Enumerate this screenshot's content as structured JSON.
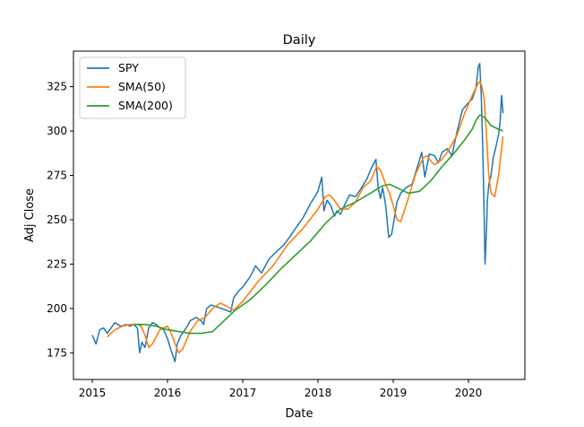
{
  "chart_data": {
    "type": "line",
    "title": "Daily",
    "xlabel": "Date",
    "ylabel": "Adj Close",
    "xlim": [
      2014.75,
      2020.75
    ],
    "ylim": [
      160,
      345
    ],
    "x_ticks": [
      2015,
      2016,
      2017,
      2018,
      2019,
      2020
    ],
    "x_tick_labels": [
      "2015",
      "2016",
      "2017",
      "2018",
      "2019",
      "2020"
    ],
    "y_ticks": [
      175,
      200,
      225,
      250,
      275,
      300,
      325
    ],
    "y_tick_labels": [
      "175",
      "200",
      "225",
      "250",
      "275",
      "300",
      "325"
    ],
    "grid": false,
    "legend_position": "top-left",
    "series": [
      {
        "name": "SPY",
        "color": "#1f77b4",
        "x": [
          2015.0,
          2015.05,
          2015.1,
          2015.15,
          2015.2,
          2015.25,
          2015.3,
          2015.38,
          2015.45,
          2015.5,
          2015.55,
          2015.6,
          2015.63,
          2015.66,
          2015.7,
          2015.75,
          2015.8,
          2015.85,
          2015.9,
          2015.95,
          2016.0,
          2016.05,
          2016.1,
          2016.13,
          2016.18,
          2016.25,
          2016.3,
          2016.38,
          2016.45,
          2016.48,
          2016.52,
          2016.58,
          2016.65,
          2016.72,
          2016.78,
          2016.84,
          2016.88,
          2016.95,
          2017.0,
          2017.1,
          2017.17,
          2017.25,
          2017.35,
          2017.45,
          2017.55,
          2017.62,
          2017.7,
          2017.8,
          2017.9,
          2018.0,
          2018.05,
          2018.08,
          2018.12,
          2018.17,
          2018.22,
          2018.25,
          2018.3,
          2018.35,
          2018.42,
          2018.5,
          2018.58,
          2018.65,
          2018.72,
          2018.77,
          2018.8,
          2018.83,
          2018.86,
          2018.9,
          2018.94,
          2018.98,
          2019.0,
          2019.05,
          2019.1,
          2019.17,
          2019.25,
          2019.33,
          2019.38,
          2019.42,
          2019.48,
          2019.55,
          2019.6,
          2019.65,
          2019.72,
          2019.78,
          2019.85,
          2019.92,
          2020.0,
          2020.05,
          2020.1,
          2020.13,
          2020.15,
          2020.17,
          2020.19,
          2020.21,
          2020.22,
          2020.24,
          2020.25,
          2020.27,
          2020.3,
          2020.33,
          2020.36,
          2020.4,
          2020.42,
          2020.44,
          2020.46
        ],
        "values": [
          185,
          180,
          188,
          189,
          186,
          189,
          192,
          190,
          191,
          190,
          191,
          189,
          175,
          181,
          178,
          189,
          192,
          191,
          189,
          188,
          183,
          176,
          170,
          180,
          185,
          189,
          193,
          195,
          193,
          191,
          200,
          202,
          201,
          200,
          199,
          198,
          206,
          210,
          212,
          218,
          224,
          220,
          228,
          232,
          236,
          240,
          245,
          251,
          259,
          266,
          274,
          255,
          261,
          258,
          252,
          255,
          253,
          258,
          264,
          263,
          268,
          273,
          280,
          284,
          268,
          262,
          268,
          258,
          240,
          242,
          247,
          260,
          265,
          268,
          270,
          281,
          288,
          274,
          287,
          286,
          282,
          288,
          290,
          286,
          300,
          312,
          316,
          318,
          324,
          336,
          338,
          320,
          290,
          250,
          225,
          245,
          260,
          270,
          275,
          285,
          290,
          298,
          305,
          320,
          310
        ]
      },
      {
        "name": "SMA(50)",
        "color": "#ff7f0e",
        "x": [
          2015.2,
          2015.3,
          2015.4,
          2015.5,
          2015.6,
          2015.65,
          2015.7,
          2015.75,
          2015.8,
          2015.9,
          2016.0,
          2016.05,
          2016.1,
          2016.15,
          2016.2,
          2016.3,
          2016.4,
          2016.5,
          2016.6,
          2016.7,
          2016.8,
          2016.88,
          2017.0,
          2017.2,
          2017.4,
          2017.6,
          2017.8,
          2018.0,
          2018.1,
          2018.15,
          2018.2,
          2018.3,
          2018.4,
          2018.5,
          2018.6,
          2018.7,
          2018.78,
          2018.83,
          2018.9,
          2018.95,
          2019.0,
          2019.05,
          2019.1,
          2019.2,
          2019.3,
          2019.4,
          2019.45,
          2019.5,
          2019.55,
          2019.65,
          2019.75,
          2019.85,
          2019.95,
          2020.05,
          2020.12,
          2020.15,
          2020.18,
          2020.21,
          2020.23,
          2020.25,
          2020.27,
          2020.3,
          2020.35,
          2020.4,
          2020.46
        ],
        "values": [
          184,
          188,
          190,
          191,
          191,
          190,
          185,
          178,
          180,
          188,
          190,
          186,
          180,
          175,
          177,
          187,
          193,
          195,
          200,
          203,
          201,
          199,
          204,
          215,
          224,
          236,
          245,
          256,
          263,
          264,
          262,
          256,
          256,
          260,
          268,
          272,
          280,
          278,
          270,
          265,
          258,
          250,
          249,
          262,
          276,
          285,
          286,
          283,
          281,
          284,
          290,
          298,
          310,
          320,
          326,
          328,
          325,
          318,
          305,
          290,
          275,
          265,
          263,
          275,
          297
        ]
      },
      {
        "name": "SMA(200)",
        "color": "#2ca02c",
        "x": [
          2015.55,
          2015.7,
          2015.85,
          2016.0,
          2016.15,
          2016.3,
          2016.45,
          2016.6,
          2016.75,
          2016.9,
          2017.1,
          2017.3,
          2017.5,
          2017.7,
          2017.9,
          2018.1,
          2018.3,
          2018.5,
          2018.7,
          2018.85,
          2018.95,
          2019.05,
          2019.2,
          2019.35,
          2019.5,
          2019.65,
          2019.8,
          2019.95,
          2020.05,
          2020.1,
          2020.15,
          2020.2,
          2020.25,
          2020.3,
          2020.4,
          2020.46
        ],
        "values": [
          191,
          191,
          190,
          188,
          187,
          186,
          186,
          187,
          193,
          199,
          205,
          213,
          222,
          230,
          238,
          248,
          256,
          260,
          265,
          269,
          270,
          268,
          265,
          266,
          272,
          280,
          287,
          295,
          301,
          306,
          309,
          308,
          306,
          303,
          301,
          300
        ]
      }
    ]
  }
}
